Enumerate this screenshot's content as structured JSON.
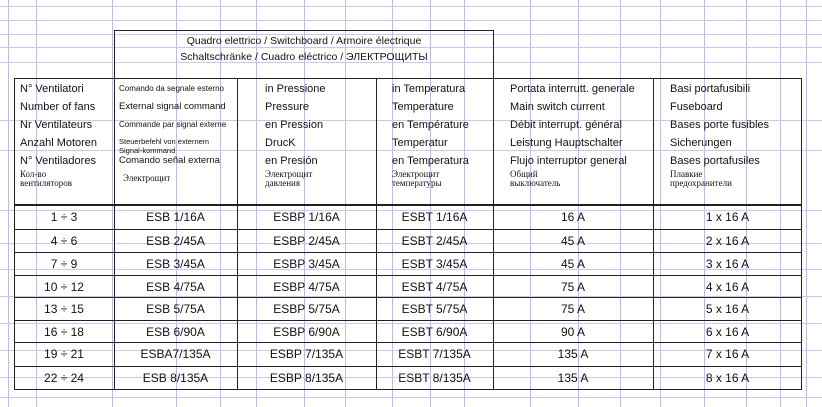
{
  "title": {
    "line1": "Quadro elettrico   /   Switchboard   /   Armoire électrique",
    "line2": "Schaltschränke  /  Cuadro eléctrico  /  ЭЛЕКТРОЩИТЫ"
  },
  "headers": [
    {
      "key": "fans",
      "lines": [
        "N° Ventilatori",
        "Number of fans",
        "Nr Ventilateurs",
        "Anzahl Motoren",
        "N° Ventiladores"
      ],
      "ru": [
        "Кол-во",
        "вентиляторов"
      ]
    },
    {
      "key": "command",
      "lines": [
        "Comando da segnale esterno",
        "External signal command",
        "Commande par signal externe",
        "Steuerbefehl von externem",
        "Signal-kommand",
        "Comando señal externa"
      ],
      "ru": [
        "Электрощит"
      ]
    },
    {
      "key": "pressure",
      "lines": [
        "in Pressione",
        "Pressure",
        "en Pression",
        "DrucK",
        "en Presión"
      ],
      "ru": [
        "Электрощит",
        "давления"
      ]
    },
    {
      "key": "temperature",
      "lines": [
        "in Temperatura",
        "Temperature",
        "en Température",
        "Temperatur",
        "en Temperatura"
      ],
      "ru": [
        "Электрощит",
        "температуры"
      ]
    },
    {
      "key": "current",
      "lines": [
        "Portata interrutt. generale",
        "Main switch current",
        "Débit interrupt. général",
        "Leistung Hauptschalter",
        "Flujo interruptor general"
      ],
      "ru": [
        "Общий",
        "выключатель"
      ]
    },
    {
      "key": "fuse",
      "lines": [
        "Basi portafusibili",
        "Fuseboard",
        "Bases porte fusibles",
        "Sicherungen",
        "Bases portafusiles"
      ],
      "ru": [
        "Плавкие",
        "предохранители"
      ]
    }
  ],
  "rows": [
    [
      "1 ÷ 3",
      "ESB 1/16A",
      "ESBP 1/16A",
      "ESBT 1/16A",
      "16 A",
      "1 x 16 A"
    ],
    [
      "4 ÷ 6",
      "ESB 2/45A",
      "ESBP 2/45A",
      "ESBT 2/45A",
      "45 A",
      "2 x 16 A"
    ],
    [
      "7 ÷ 9",
      "ESB 3/45A",
      "ESBP 3/45A",
      "ESBT 3/45A",
      "45 A",
      "3 x 16 A"
    ],
    [
      "10 ÷ 12",
      "ESB 4/75A",
      "ESBP 4/75A",
      "ESBT 4/75A",
      "75 A",
      "4 x 16 A"
    ],
    [
      "13 ÷ 15",
      "ESB 5/75A",
      "ESBP 5/75A",
      "ESBT 5/75A",
      "75 A",
      "5 x 16 A"
    ],
    [
      "16 ÷ 18",
      "ESB 6/90A",
      "ESBP 6/90A",
      "ESBT 6/90A",
      "90 A",
      "6 x 16 A"
    ],
    [
      "19 ÷ 21",
      "ESBA7/135A",
      "ESBP 7/135A",
      "ESBT 7/135A",
      "135 A",
      "7 x 16 A"
    ],
    [
      "22 ÷ 24",
      "ESB 8/135A",
      "ESBP 8/135A",
      "ESBT 8/135A",
      "135 A",
      "8 x 16 A"
    ]
  ]
}
